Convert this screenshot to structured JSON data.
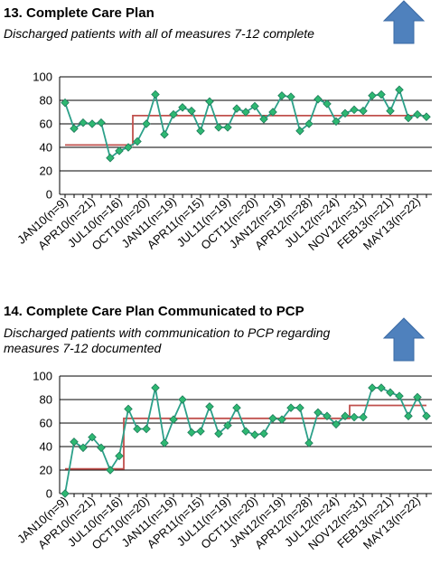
{
  "charts": [
    {
      "title": "13. Complete Care Plan",
      "subtitle": "Discharged patients with all of measures 7-12 complete",
      "arrow_icon": "up-arrow-icon",
      "arrow_color": "#4f81bd"
    },
    {
      "title": "14. Complete Care Plan Communicated to PCP",
      "subtitle_lines": [
        "Discharged patients with communication to PCP regarding",
        "measures 7-12 documented"
      ],
      "arrow_icon": "up-arrow-icon",
      "arrow_color": "#4f81bd"
    }
  ],
  "chart_data": [
    {
      "type": "line",
      "title": "13. Complete Care Plan",
      "subtitle": "Discharged patients with all of measures 7-12 complete",
      "ylim": [
        0,
        100
      ],
      "yticks": [
        0,
        20,
        40,
        60,
        80,
        100
      ],
      "grid": true,
      "x_tick_labels": [
        "JAN10(n=9)",
        "APR10(n=21)",
        "JUL10(n=16)",
        "OCT10(n=20)",
        "JAN11(n=19)",
        "APR11(n=15)",
        "JUL11(n=19)",
        "OCT11(n=20)",
        "JAN12(n=19)",
        "APR12(n=28)",
        "JUL12(n=24)",
        "NOV12(n=31)",
        "FEB13(n=21)",
        "MAY13(n=22)"
      ],
      "series_color": "#2ca089",
      "marker_color": "#2eb872",
      "median_color": "#c0504d",
      "values": [
        78,
        56,
        61,
        60,
        61,
        31,
        37,
        40,
        45,
        60,
        85,
        51,
        68,
        74,
        71,
        54,
        79,
        57,
        57,
        73,
        70,
        75,
        64,
        70,
        84,
        83,
        54,
        60,
        81,
        77,
        62,
        69,
        72,
        71,
        84,
        85,
        71,
        89,
        65,
        68,
        66
      ],
      "median_segments": [
        {
          "from": 0,
          "to": 7.5,
          "value": 42
        },
        {
          "from": 7.5,
          "to": 40,
          "value": 67
        }
      ]
    },
    {
      "type": "line",
      "title": "14. Complete Care Plan Communicated to PCP",
      "subtitle": "Discharged patients with communication to PCP regarding measures 7-12 documented",
      "ylim": [
        0,
        100
      ],
      "yticks": [
        0,
        20,
        40,
        60,
        80,
        100
      ],
      "grid": true,
      "x_tick_labels": [
        "JAN10(n=9)",
        "APR10(n=21)",
        "JUL10(n=16)",
        "OCT10(n=20)",
        "JAN11(n=19)",
        "APR11(n=15)",
        "JUL11(n=19)",
        "OCT11(n=20)",
        "JAN12(n=19)",
        "APR12(n=28)",
        "JUL12(n=24)",
        "NOV12(n=31)",
        "FEB13(n=21)",
        "MAY13(n=22)"
      ],
      "series_color": "#2ca089",
      "marker_color": "#2eb872",
      "median_color": "#c0504d",
      "values": [
        0,
        44,
        39,
        48,
        39,
        20,
        32,
        72,
        55,
        55,
        90,
        43,
        63,
        80,
        52,
        53,
        74,
        51,
        58,
        73,
        53,
        50,
        51,
        64,
        63,
        73,
        73,
        43,
        69,
        66,
        59,
        66,
        65,
        65,
        90,
        90,
        86,
        83,
        66,
        82,
        66
      ],
      "median_segments": [
        {
          "from": 0,
          "to": 6.5,
          "value": 21
        },
        {
          "from": 6.5,
          "to": 31.5,
          "value": 64
        },
        {
          "from": 31.5,
          "to": 40,
          "value": 75
        }
      ]
    }
  ]
}
